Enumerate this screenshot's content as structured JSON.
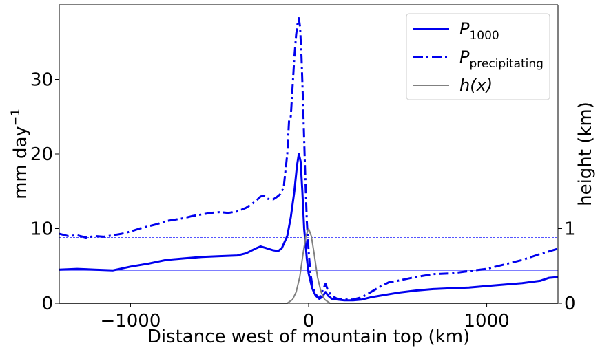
{
  "chart_data": {
    "type": "line",
    "xlabel": "Distance west of mountain top (km)",
    "ylabel": "mm day",
    "ylabel_sup": "−1",
    "ylabel_right": "height (km)",
    "xlim": [
      -1400,
      1400
    ],
    "ylim": [
      0,
      40
    ],
    "ylim_right": [
      0,
      4
    ],
    "x_ticks": [
      -1000,
      0,
      1000
    ],
    "x_tick_labels": [
      "−1000",
      "0",
      "1000"
    ],
    "y_ticks": [
      0,
      10,
      20,
      30
    ],
    "y_tick_labels": [
      "0",
      "10",
      "20",
      "30"
    ],
    "y_ticks_right": [
      0,
      1
    ],
    "y_tick_labels_right": [
      "0",
      "1"
    ],
    "hlines": [
      {
        "y": 8.8,
        "style": "dashed",
        "color": "#5555ff"
      },
      {
        "y": 4.4,
        "style": "solid",
        "color": "#5555ff"
      }
    ],
    "legend_position": "top-right",
    "series": [
      {
        "name": "P",
        "name_sub": "1000",
        "style": "solid",
        "color": "#0000ee",
        "axis": "left",
        "points": [
          [
            -1400,
            4.5
          ],
          [
            -1300,
            4.6
          ],
          [
            -1200,
            4.5
          ],
          [
            -1100,
            4.4
          ],
          [
            -1000,
            4.9
          ],
          [
            -900,
            5.3
          ],
          [
            -800,
            5.8
          ],
          [
            -700,
            6.0
          ],
          [
            -600,
            6.2
          ],
          [
            -500,
            6.3
          ],
          [
            -400,
            6.4
          ],
          [
            -350,
            6.7
          ],
          [
            -300,
            7.3
          ],
          [
            -270,
            7.6
          ],
          [
            -240,
            7.4
          ],
          [
            -200,
            7.1
          ],
          [
            -170,
            7.0
          ],
          [
            -150,
            7.4
          ],
          [
            -120,
            9.0
          ],
          [
            -100,
            11.5
          ],
          [
            -80,
            15.0
          ],
          [
            -65,
            18.5
          ],
          [
            -55,
            20.0
          ],
          [
            -45,
            19.0
          ],
          [
            -35,
            15.0
          ],
          [
            -25,
            10.0
          ],
          [
            -10,
            6.0
          ],
          [
            0,
            4.0
          ],
          [
            20,
            2.0
          ],
          [
            40,
            1.0
          ],
          [
            60,
            0.6
          ],
          [
            75,
            0.8
          ],
          [
            95,
            1.5
          ],
          [
            110,
            1.0
          ],
          [
            130,
            0.6
          ],
          [
            160,
            0.5
          ],
          [
            200,
            0.4
          ],
          [
            250,
            0.4
          ],
          [
            300,
            0.5
          ],
          [
            350,
            0.8
          ],
          [
            400,
            1.0
          ],
          [
            500,
            1.4
          ],
          [
            600,
            1.7
          ],
          [
            700,
            1.9
          ],
          [
            800,
            2.0
          ],
          [
            900,
            2.1
          ],
          [
            1000,
            2.3
          ],
          [
            1100,
            2.5
          ],
          [
            1200,
            2.7
          ],
          [
            1300,
            3.0
          ],
          [
            1350,
            3.4
          ],
          [
            1400,
            3.5
          ]
        ]
      },
      {
        "name": "P",
        "name_sub": "precipitating",
        "style": "dashdot",
        "color": "#0000ee",
        "axis": "left",
        "points": [
          [
            -1400,
            9.3
          ],
          [
            -1350,
            9.0
          ],
          [
            -1300,
            9.1
          ],
          [
            -1250,
            8.8
          ],
          [
            -1200,
            9.0
          ],
          [
            -1150,
            8.9
          ],
          [
            -1100,
            9.1
          ],
          [
            -1050,
            9.3
          ],
          [
            -1000,
            9.6
          ],
          [
            -950,
            10.0
          ],
          [
            -900,
            10.3
          ],
          [
            -850,
            10.6
          ],
          [
            -800,
            11.0
          ],
          [
            -750,
            11.2
          ],
          [
            -700,
            11.4
          ],
          [
            -650,
            11.7
          ],
          [
            -600,
            11.9
          ],
          [
            -550,
            12.1
          ],
          [
            -500,
            12.2
          ],
          [
            -450,
            12.1
          ],
          [
            -400,
            12.3
          ],
          [
            -350,
            12.8
          ],
          [
            -300,
            13.6
          ],
          [
            -270,
            14.3
          ],
          [
            -250,
            14.4
          ],
          [
            -230,
            14.0
          ],
          [
            -200,
            13.9
          ],
          [
            -180,
            14.2
          ],
          [
            -160,
            14.6
          ],
          [
            -140,
            15.5
          ],
          [
            -120,
            20.0
          ],
          [
            -110,
            24.5
          ],
          [
            -100,
            25.0
          ],
          [
            -90,
            29.0
          ],
          [
            -80,
            33.0
          ],
          [
            -70,
            36.0
          ],
          [
            -62,
            37.5
          ],
          [
            -55,
            38.2
          ],
          [
            -48,
            37.0
          ],
          [
            -40,
            33.0
          ],
          [
            -30,
            26.0
          ],
          [
            -20,
            18.0
          ],
          [
            -10,
            11.0
          ],
          [
            0,
            7.0
          ],
          [
            10,
            4.0
          ],
          [
            20,
            2.5
          ],
          [
            40,
            1.2
          ],
          [
            60,
            0.6
          ],
          [
            80,
            1.8
          ],
          [
            95,
            2.6
          ],
          [
            110,
            1.6
          ],
          [
            130,
            1.0
          ],
          [
            160,
            0.6
          ],
          [
            200,
            0.5
          ],
          [
            250,
            0.5
          ],
          [
            300,
            0.8
          ],
          [
            350,
            1.5
          ],
          [
            400,
            2.2
          ],
          [
            450,
            2.8
          ],
          [
            500,
            3.0
          ],
          [
            600,
            3.5
          ],
          [
            700,
            3.9
          ],
          [
            800,
            4.0
          ],
          [
            900,
            4.3
          ],
          [
            1000,
            4.6
          ],
          [
            1100,
            5.2
          ],
          [
            1200,
            5.8
          ],
          [
            1300,
            6.6
          ],
          [
            1400,
            7.3
          ]
        ]
      },
      {
        "name": "h(x)",
        "style": "solid",
        "color": "#808080",
        "axis": "right",
        "points": [
          [
            -1400,
            0.0
          ],
          [
            -200,
            0.0
          ],
          [
            -120,
            0.0
          ],
          [
            -90,
            0.05
          ],
          [
            -70,
            0.15
          ],
          [
            -50,
            0.35
          ],
          [
            -30,
            0.68
          ],
          [
            -15,
            0.9
          ],
          [
            0,
            1.0
          ],
          [
            15,
            0.9
          ],
          [
            30,
            0.68
          ],
          [
            50,
            0.35
          ],
          [
            70,
            0.15
          ],
          [
            90,
            0.05
          ],
          [
            120,
            0.0
          ],
          [
            200,
            0.0
          ],
          [
            1400,
            0.0
          ]
        ]
      }
    ]
  }
}
